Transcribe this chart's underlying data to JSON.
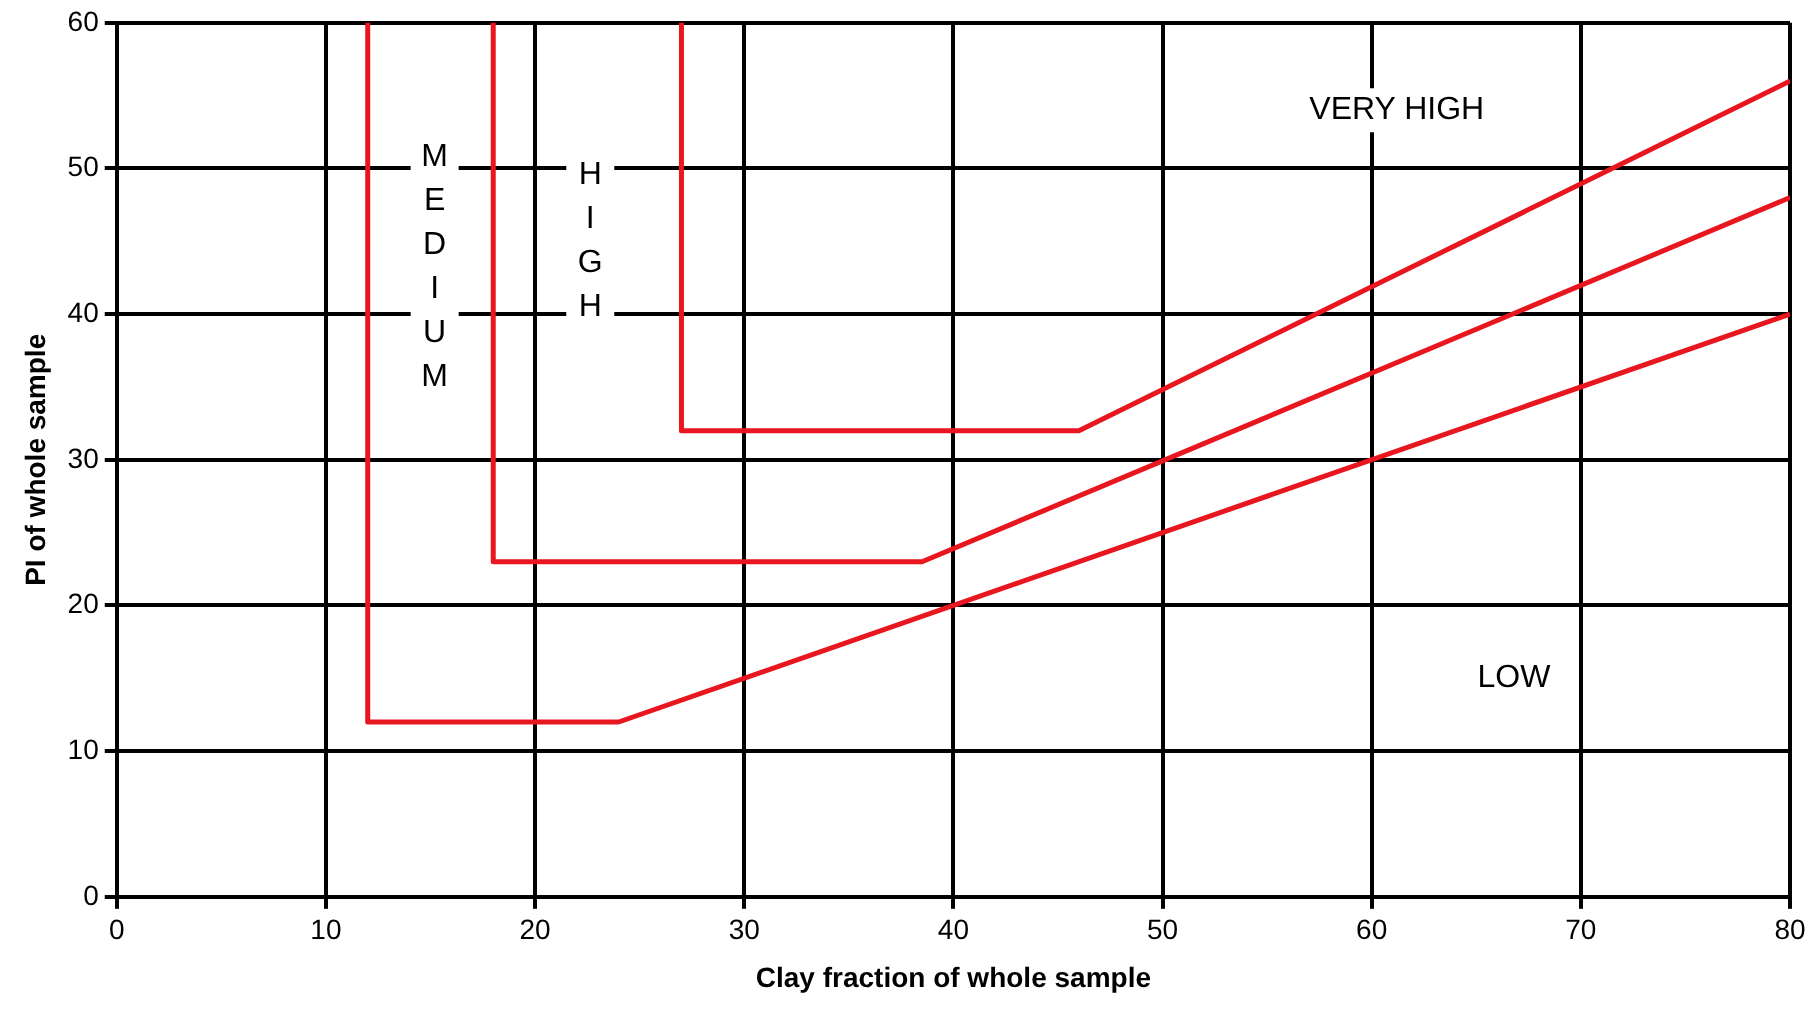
{
  "chart_data": {
    "type": "line",
    "xlabel": "Clay fraction of whole sample",
    "ylabel": "PI of whole sample",
    "series": [
      {
        "color": "#e8161e",
        "x": [
          12,
          12,
          24,
          80
        ],
        "values": [
          60,
          12,
          12,
          40
        ]
      },
      {
        "color": "#e8161e",
        "x": [
          18,
          18,
          38.5,
          80
        ],
        "values": [
          60,
          23,
          23,
          48
        ]
      },
      {
        "color": "#e8161e",
        "x": [
          27,
          27,
          46,
          80
        ],
        "values": [
          60,
          32,
          32,
          56
        ]
      }
    ],
    "xlim": [
      0,
      80
    ],
    "xticks": [
      0,
      10,
      20,
      30,
      40,
      50,
      60,
      70,
      80
    ],
    "ylim": [
      0,
      60
    ],
    "yticks": [
      0,
      10,
      20,
      30,
      40,
      50,
      60
    ],
    "grid": true,
    "legend": false,
    "marker": "none",
    "line_style": "solid",
    "annotations": [
      "VERY HIGH",
      "LOW",
      "MEDIUM",
      "HIGH"
    ]
  }
}
